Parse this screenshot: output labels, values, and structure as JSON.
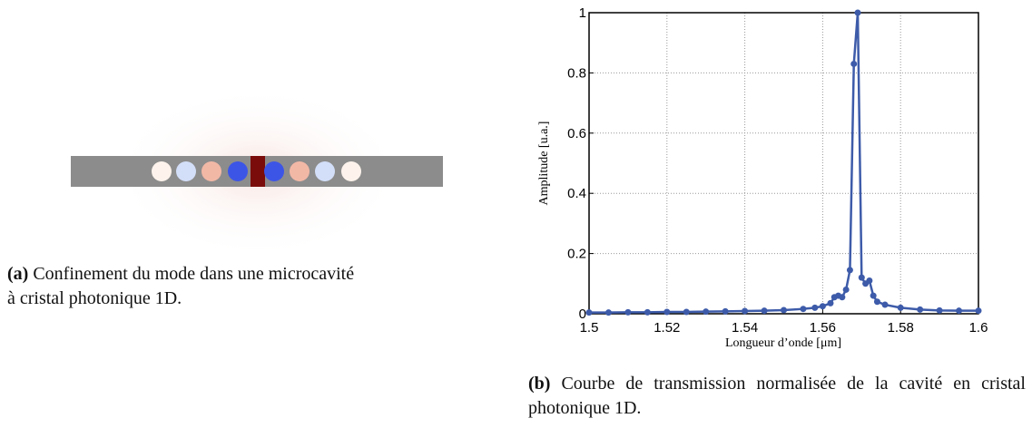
{
  "subfigure_a": {
    "label": "(a)",
    "caption": "Confinement du mode dans une microcavité à cristal photonique 1D."
  },
  "subfigure_b": {
    "label": "(b)",
    "caption": "Courbe de transmission normalisée de la cavité en cristal photonique 1D."
  },
  "chart_data": {
    "type": "line",
    "x_label": "Longueur d’onde [μm]",
    "y_label": "Amplitude [u.a.]",
    "x": [
      1.5,
      1.505,
      1.51,
      1.515,
      1.52,
      1.525,
      1.53,
      1.535,
      1.54,
      1.545,
      1.55,
      1.555,
      1.558,
      1.56,
      1.562,
      1.563,
      1.564,
      1.565,
      1.566,
      1.567,
      1.568,
      1.569,
      1.57,
      1.571,
      1.572,
      1.573,
      1.574,
      1.576,
      1.58,
      1.585,
      1.59,
      1.595,
      1.6
    ],
    "series": [
      {
        "color": "#3d5ba9",
        "values": [
          0.004,
          0.004,
          0.005,
          0.005,
          0.006,
          0.006,
          0.007,
          0.008,
          0.009,
          0.01,
          0.012,
          0.016,
          0.02,
          0.025,
          0.035,
          0.055,
          0.06,
          0.055,
          0.08,
          0.145,
          0.83,
          1.0,
          0.12,
          0.1,
          0.11,
          0.06,
          0.04,
          0.03,
          0.02,
          0.014,
          0.011,
          0.01,
          0.01
        ]
      }
    ],
    "xlim": [
      1.5,
      1.6
    ],
    "ylim": [
      0,
      1
    ],
    "xticks": [
      1.5,
      1.52,
      1.54,
      1.56,
      1.58,
      1.6
    ],
    "yticks": [
      0,
      0.2,
      0.4,
      0.6,
      0.8,
      1
    ],
    "grid": true
  }
}
